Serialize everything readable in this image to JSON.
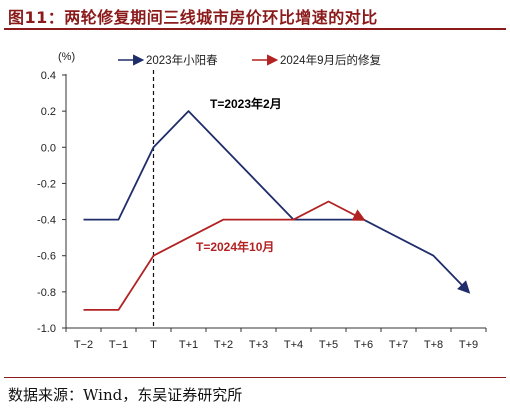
{
  "title": "图11：两轮修复期间三线城市房价环比增速的对比",
  "source": "数据来源：Wind，东吴证券研究所",
  "colors": {
    "title": "#8b1a1a",
    "series_1": "#1f2d6b",
    "series_2": "#b22222",
    "axis": "#333333"
  },
  "chart_data": {
    "type": "line",
    "ylabel": "(%)",
    "ylim": [
      -1.0,
      0.4
    ],
    "yticks": [
      "0.4",
      "0.2",
      "0.0",
      "-0.2",
      "-0.4",
      "-0.6",
      "-0.8",
      "-1.0"
    ],
    "ytick_values": [
      0.4,
      0.2,
      0.0,
      -0.2,
      -0.4,
      -0.6,
      -0.8,
      -1.0
    ],
    "categories": [
      "T−2",
      "T−1",
      "T",
      "T+1",
      "T+2",
      "T+3",
      "T+4",
      "T+5",
      "T+6",
      "T+7",
      "T+8",
      "T+9"
    ],
    "grid": false,
    "legend_position": "top",
    "series": [
      {
        "name": "2023年小阳春",
        "color": "#1f2d6b",
        "values": [
          -0.4,
          -0.4,
          0.0,
          0.2,
          null,
          null,
          -0.4,
          -0.4,
          -0.4,
          null,
          -0.6,
          -0.8
        ]
      },
      {
        "name": "2024年9月后的修复",
        "color": "#b22222",
        "values": [
          -0.9,
          -0.9,
          -0.6,
          -0.5,
          -0.4,
          -0.4,
          -0.4,
          -0.3,
          -0.4,
          null,
          null,
          null
        ]
      }
    ],
    "vline_category": "T",
    "annotations": [
      {
        "text": "T=2023年2月",
        "series": 0
      },
      {
        "text": "T=2024年10月",
        "series": 1
      }
    ]
  }
}
